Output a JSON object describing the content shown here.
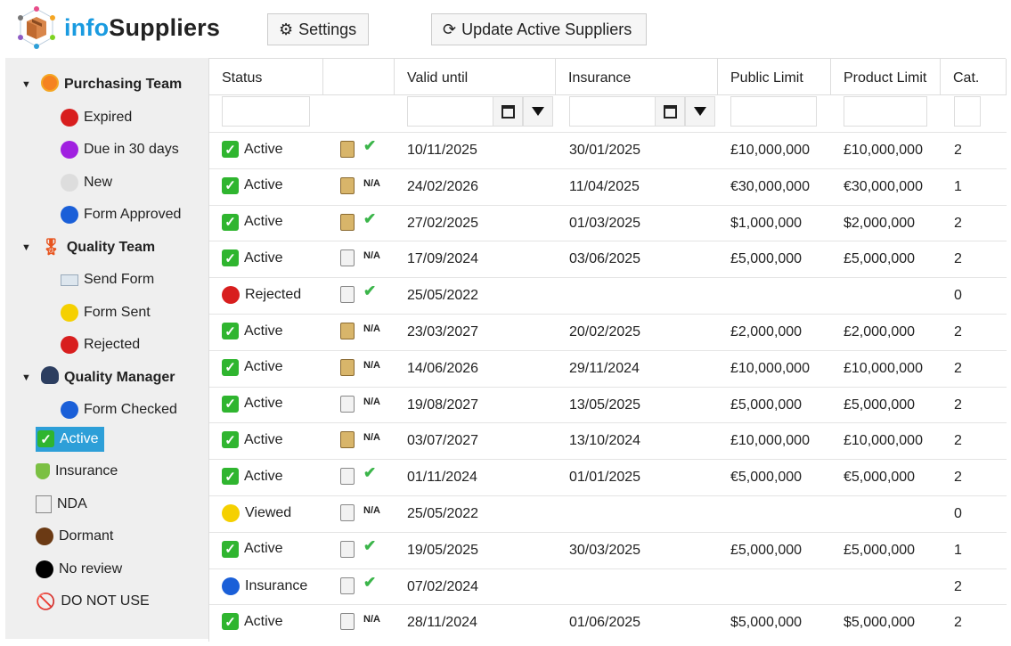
{
  "app": {
    "title_a": "info",
    "title_b": "Suppliers"
  },
  "toolbar": {
    "settings": "Settings",
    "update": "Update Active Suppliers"
  },
  "sidebar": {
    "groups": [
      {
        "label": "Purchasing Team",
        "items": [
          {
            "label": "Expired",
            "color": "#d81e1e"
          },
          {
            "label": "Due in 30 days",
            "color": "#a020e0"
          },
          {
            "label": "New",
            "color": "#dddddd"
          },
          {
            "label": "Form Approved",
            "color": "#1a5fd8"
          }
        ]
      },
      {
        "label": "Quality Team",
        "items": [
          {
            "label": "Send Form",
            "color": "envelope"
          },
          {
            "label": "Form Sent",
            "color": "#f5d000"
          },
          {
            "label": "Rejected",
            "color": "#d81e1e"
          }
        ]
      },
      {
        "label": "Quality Manager",
        "items": [
          {
            "label": "Form Checked",
            "color": "#1a5fd8"
          }
        ]
      }
    ],
    "items": [
      {
        "label": "Active",
        "selected": true
      },
      {
        "label": "Insurance"
      },
      {
        "label": "NDA"
      },
      {
        "label": "Dormant",
        "color": "#6b3a14"
      },
      {
        "label": "No review",
        "color": "#000000"
      },
      {
        "label": "DO NOT USE"
      }
    ]
  },
  "table": {
    "columns": [
      "Status",
      "",
      "Valid until",
      "Insurance",
      "Public Limit",
      "Product Limit",
      "Cat."
    ],
    "rows": [
      {
        "status": "Active",
        "doc": "tan",
        "nda": "check",
        "valid": "10/11/2025",
        "ins": "30/01/2025",
        "pub": "£10,000,000",
        "prod": "£10,000,000",
        "cat": "2"
      },
      {
        "status": "Active",
        "doc": "tan",
        "nda": "N/A",
        "valid": "24/02/2026",
        "ins": "11/04/2025",
        "pub": "€30,000,000",
        "prod": "€30,000,000",
        "cat": "1"
      },
      {
        "status": "Active",
        "doc": "tan",
        "nda": "check",
        "valid": "27/02/2025",
        "ins": "01/03/2025",
        "pub": "$1,000,000",
        "prod": "$2,000,000",
        "cat": "2"
      },
      {
        "status": "Active",
        "doc": "grey",
        "nda": "N/A",
        "valid": "17/09/2024",
        "ins": "03/06/2025",
        "pub": "£5,000,000",
        "prod": "£5,000,000",
        "cat": "2"
      },
      {
        "status": "Rejected",
        "doc": "grey",
        "nda": "check",
        "valid": "25/05/2022",
        "ins": "",
        "pub": "",
        "prod": "",
        "cat": "0"
      },
      {
        "status": "Active",
        "doc": "tan",
        "nda": "N/A",
        "valid": "23/03/2027",
        "ins": "20/02/2025",
        "pub": "£2,000,000",
        "prod": "£2,000,000",
        "cat": "2"
      },
      {
        "status": "Active",
        "doc": "tan",
        "nda": "N/A",
        "valid": "14/06/2026",
        "ins": "29/11/2024",
        "pub": "£10,000,000",
        "prod": "£10,000,000",
        "cat": "2"
      },
      {
        "status": "Active",
        "doc": "grey",
        "nda": "N/A",
        "valid": "19/08/2027",
        "ins": "13/05/2025",
        "pub": "£5,000,000",
        "prod": "£5,000,000",
        "cat": "2"
      },
      {
        "status": "Active",
        "doc": "tan",
        "nda": "N/A",
        "valid": "03/07/2027",
        "ins": "13/10/2024",
        "pub": "£10,000,000",
        "prod": "£10,000,000",
        "cat": "2"
      },
      {
        "status": "Active",
        "doc": "grey",
        "nda": "check",
        "valid": "01/11/2024",
        "ins": "01/01/2025",
        "pub": "€5,000,000",
        "prod": "€5,000,000",
        "cat": "2"
      },
      {
        "status": "Viewed",
        "doc": "grey",
        "nda": "N/A",
        "valid": "25/05/2022",
        "ins": "",
        "pub": "",
        "prod": "",
        "cat": "0"
      },
      {
        "status": "Active",
        "doc": "grey",
        "nda": "check",
        "valid": "19/05/2025",
        "ins": "30/03/2025",
        "pub": "£5,000,000",
        "prod": "£5,000,000",
        "cat": "1"
      },
      {
        "status": "Insurance",
        "doc": "grey",
        "nda": "check",
        "valid": "07/02/2024",
        "ins": "",
        "pub": "",
        "prod": "",
        "cat": "2"
      },
      {
        "status": "Active",
        "doc": "grey",
        "nda": "N/A",
        "valid": "28/11/2024",
        "ins": "01/06/2025",
        "pub": "$5,000,000",
        "prod": "$5,000,000",
        "cat": "2"
      }
    ]
  }
}
